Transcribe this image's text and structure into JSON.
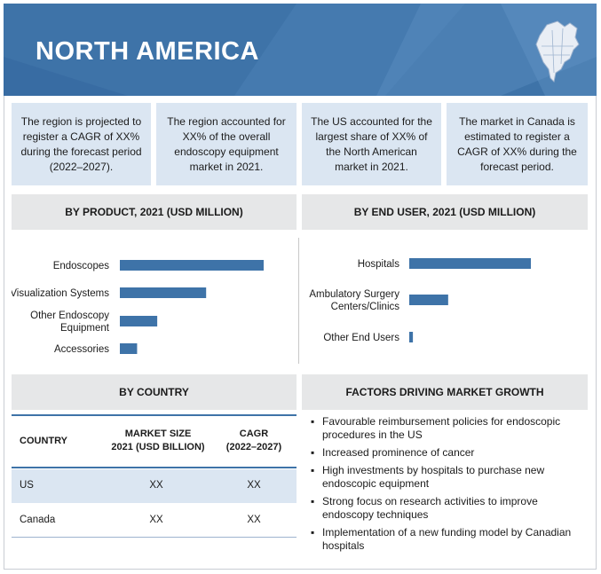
{
  "title": "NORTH AMERICA",
  "colors": {
    "header": "#3e73a8",
    "tile": "#dbe6f2",
    "section": "#e6e7e8",
    "bar": "#3e73a8"
  },
  "stats": [
    "The region is projected to register a CAGR of XX% during the forecast period (2022–2027).",
    "The region accounted for XX% of the overall endoscopy equipment market in 2021.",
    "The US accounted for the largest share of XX% of the North American market in 2021.",
    "The market in Canada is estimated to register a CAGR of XX% during the forecast period."
  ],
  "product_heading": "BY PRODUCT, 2021 (USD MILLION)",
  "end_user_heading": "BY END USER, 2021 (USD MILLION)",
  "chart_data": [
    {
      "type": "bar",
      "orientation": "horizontal",
      "title": "BY PRODUCT, 2021 (USD MILLION)",
      "categories": [
        "Endoscopes",
        "Visualization Systems",
        "Other Endoscopy Equipment",
        "Accessories"
      ],
      "category_lines": [
        [
          "Endoscopes"
        ],
        [
          "Visualization Systems"
        ],
        [
          "Other Endoscopy",
          "Equipment"
        ],
        [
          "Accessories"
        ]
      ],
      "values": [
        100,
        60,
        26,
        12
      ],
      "color": "#3e73a8"
    },
    {
      "type": "bar",
      "orientation": "horizontal",
      "title": "BY END USER, 2021 (USD MILLION)",
      "categories": [
        "Hospitals",
        "Ambulatory Surgery Centers/Clinics",
        "Other End Users"
      ],
      "category_lines": [
        [
          "Hospitals"
        ],
        [
          "Ambulatory Surgery",
          "Centers/Clinics"
        ],
        [
          "Other End Users"
        ]
      ],
      "values": [
        100,
        32,
        3
      ],
      "color": "#3e73a8"
    }
  ],
  "country": {
    "heading": "BY COUNTRY",
    "headers": {
      "country": "COUNTRY",
      "size_1": "MARKET SIZE",
      "size_2": "2021 (USD BILLION)",
      "cagr_1": "CAGR",
      "cagr_2": "(2022–2027)"
    },
    "rows": [
      {
        "name": "US",
        "size": "XX",
        "cagr": "XX"
      },
      {
        "name": "Canada",
        "size": "XX",
        "cagr": "XX"
      }
    ]
  },
  "factors": {
    "heading": "FACTORS DRIVING MARKET GROWTH",
    "items": [
      "Favourable reimbursement policies for endoscopic procedures in the US",
      "Increased prominence of cancer",
      "High investments by hospitals to purchase new endoscopic equipment",
      "Strong focus on research activities to improve endoscopy techniques",
      "Implementation of a new funding model by Canadian hospitals"
    ]
  }
}
